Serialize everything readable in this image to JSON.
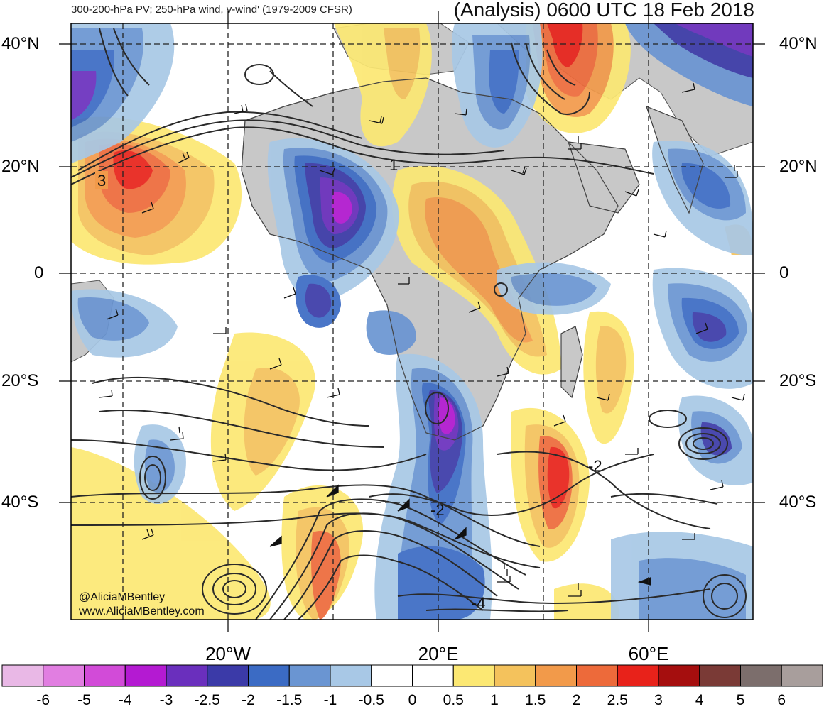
{
  "header": {
    "left_title": "300-200-hPa PV; 250-hPa wind, v-wind' (1979-2009 CFSR)",
    "right_title": "(Analysis) 0600 UTC 18 Feb 2018"
  },
  "map": {
    "lat_labels_left": [
      "40°N",
      "20°N",
      "0",
      "20°S",
      "40°S"
    ],
    "lat_labels_right": [
      "40°N",
      "20°N",
      "0",
      "20°S",
      "40°S"
    ],
    "lon_labels": [
      "20°W",
      "20°E",
      "60°E"
    ],
    "contour_labels": [
      "3",
      "1",
      "-2",
      "-2",
      "-4"
    ],
    "watermark": [
      "@AliciaMBentley",
      "www.AliciaMBentley.com"
    ]
  },
  "colorbar": {
    "levels": [
      "-6",
      "-5",
      "-4",
      "-3",
      "-2.5",
      "-2",
      "-1.5",
      "-1",
      "-0.5",
      "0",
      "0.5",
      "1",
      "1.5",
      "2",
      "2.5",
      "3",
      "4",
      "5",
      "6"
    ],
    "colors": [
      "#e9b8e6",
      "#e17ee1",
      "#d24bd8",
      "#b41ad2",
      "#6a2fbd",
      "#3b3aa8",
      "#3b6bc4",
      "#6a95d2",
      "#a8c8e6",
      "#ffffff",
      "#ffffff",
      "#fce873",
      "#f4c25c",
      "#f29a4a",
      "#ed6a3a",
      "#e8221a",
      "#a50e0e",
      "#7a3a36",
      "#7c6e6c",
      "#a89e9c"
    ]
  }
}
